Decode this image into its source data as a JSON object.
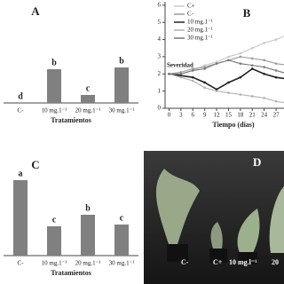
{
  "chart_data": [
    {
      "type": "bar",
      "title": "A",
      "x_label": "Tratamientos",
      "categories": [
        "C-",
        "10 mg.1⁻¹",
        "20 mg.1⁻¹",
        "30 mg.1⁻¹"
      ],
      "values": [
        0,
        3.8,
        0.9,
        4.0
      ],
      "annotations": [
        "d",
        "b",
        "c",
        "b"
      ],
      "color": "#808080",
      "ylim": [
        0,
        10
      ]
    },
    {
      "type": "line",
      "title": "B",
      "x_label": "Tiempo (dias)",
      "y_label": "Severidad",
      "x": [
        0,
        3,
        6,
        9,
        12,
        15,
        18,
        21,
        24,
        27,
        30
      ],
      "xlim": [
        -1,
        29
      ],
      "xticks": [
        0,
        3,
        6,
        9,
        12,
        15,
        18,
        21,
        24,
        27,
        30
      ],
      "ylim": [
        0,
        6.2
      ],
      "yticks": [
        0,
        1,
        2,
        3,
        4,
        5,
        6
      ],
      "legend": "top-left",
      "series": [
        {
          "name": "C+",
          "color": "#c8c8c8",
          "values": [
            2,
            2,
            2.2,
            2.5,
            2.7,
            3,
            3.2,
            3.5,
            3.8,
            4,
            4.3
          ]
        },
        {
          "name": "C-",
          "color": "#9a9a9a",
          "values": [
            2,
            2.1,
            2.3,
            2.4,
            2.6,
            2.8,
            3,
            2.9,
            2.8,
            2.6,
            2.5
          ]
        },
        {
          "name": "10 mg.1⁻¹",
          "color": "#222222",
          "values": [
            2,
            1.9,
            1.8,
            1.5,
            1.1,
            1.5,
            1.8,
            2.3,
            2,
            1.8,
            1.7
          ]
        },
        {
          "name": "20 mg.1⁻¹",
          "color": "#b0b0b0",
          "values": [
            2,
            1.8,
            1.6,
            1.2,
            1.0,
            0.9,
            0.8,
            0.7,
            0.6,
            0.4,
            0.3
          ]
        },
        {
          "name": "30 mg.1⁻¹",
          "color": "#777777",
          "values": [
            2,
            2,
            2.2,
            2.3,
            2.6,
            2.8,
            2.6,
            2.5,
            2.4,
            2.2,
            2.0
          ]
        }
      ]
    },
    {
      "type": "bar",
      "title": "C",
      "x_label": "Tratamientos",
      "categories": [
        "C-",
        "10 mg.1⁻¹",
        "20 mg.1⁻¹",
        "30 mg.1⁻¹"
      ],
      "values": [
        8.5,
        3.3,
        4.6,
        3.5
      ],
      "annotations": [
        "a",
        "c",
        "b",
        "c"
      ],
      "color": "#808080",
      "ylim": [
        0,
        10
      ]
    }
  ],
  "photo": {
    "title": "D",
    "labels": [
      "C-",
      "C+",
      "10 mg.l⁻¹",
      "20"
    ]
  }
}
